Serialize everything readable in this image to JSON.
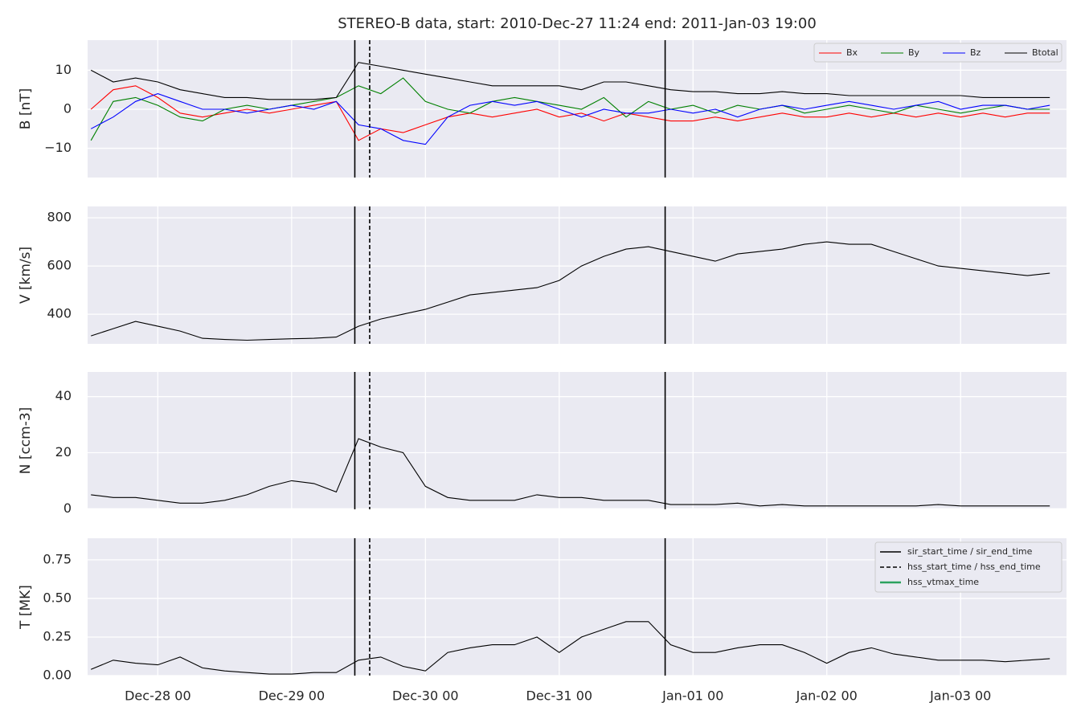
{
  "chart_data": [
    {
      "type": "line",
      "title": "STEREO-B data, start: 2010-Dec-27 11:24  end: 2011-Jan-03 19:00",
      "ylabel": "B [nT]",
      "xlim": [
        "2010-12-27 11:24",
        "2011-01-03 19:00"
      ],
      "ylim": [
        -17.5,
        17.7
      ],
      "yticks": [
        {
          "value": -10,
          "label": "−10"
        },
        0,
        10
      ],
      "grid": true,
      "legend": "upper right",
      "legend_layout": "row",
      "x": [
        "2010-12-27 12:00",
        "2010-12-27 16:00",
        "2010-12-27 20:00",
        "2010-12-28 00:00",
        "2010-12-28 04:00",
        "2010-12-28 08:00",
        "2010-12-28 12:00",
        "2010-12-28 16:00",
        "2010-12-28 20:00",
        "2010-12-29 00:00",
        "2010-12-29 04:00",
        "2010-12-29 08:00",
        "2010-12-29 12:00",
        "2010-12-29 16:00",
        "2010-12-29 20:00",
        "2010-12-30 00:00",
        "2010-12-30 04:00",
        "2010-12-30 08:00",
        "2010-12-30 12:00",
        "2010-12-30 16:00",
        "2010-12-30 20:00",
        "2010-12-31 00:00",
        "2010-12-31 04:00",
        "2010-12-31 08:00",
        "2010-12-31 12:00",
        "2010-12-31 16:00",
        "2010-12-31 20:00",
        "2011-01-01 00:00",
        "2011-01-01 04:00",
        "2011-01-01 08:00",
        "2011-01-01 12:00",
        "2011-01-01 16:00",
        "2011-01-01 20:00",
        "2011-01-02 00:00",
        "2011-01-02 04:00",
        "2011-01-02 08:00",
        "2011-01-02 12:00",
        "2011-01-02 16:00",
        "2011-01-02 20:00",
        "2011-01-03 00:00",
        "2011-01-03 04:00",
        "2011-01-03 08:00",
        "2011-01-03 12:00",
        "2011-01-03 16:00"
      ],
      "series": [
        {
          "name": "Bx",
          "color": "#ff0000",
          "values": [
            0,
            5,
            6,
            3,
            -1,
            -2,
            -1,
            0,
            -1,
            0,
            1,
            2,
            -8,
            -5,
            -6,
            -4,
            -2,
            -1,
            -2,
            -1,
            0,
            -2,
            -1,
            -3,
            -1,
            -2,
            -3,
            -3,
            -2,
            -3,
            -2,
            -1,
            -2,
            -2,
            -1,
            -2,
            -1,
            -2,
            -1,
            -2,
            -1,
            -2,
            -1,
            -1
          ]
        },
        {
          "name": "By",
          "color": "#008000",
          "values": [
            -8,
            2,
            3,
            1,
            -2,
            -3,
            0,
            1,
            0,
            1,
            2,
            3,
            6,
            4,
            8,
            2,
            0,
            -1,
            2,
            3,
            2,
            1,
            0,
            3,
            -2,
            2,
            0,
            1,
            -1,
            1,
            0,
            1,
            -1,
            0,
            1,
            0,
            -1,
            1,
            0,
            -1,
            0,
            1,
            0,
            0
          ]
        },
        {
          "name": "Bz",
          "color": "#0000ff",
          "values": [
            -5,
            -2,
            2,
            4,
            2,
            0,
            0,
            -1,
            0,
            1,
            0,
            2,
            -4,
            -5,
            -8,
            -9,
            -2,
            1,
            2,
            1,
            2,
            0,
            -2,
            0,
            -1,
            -1,
            0,
            -1,
            0,
            -2,
            0,
            1,
            0,
            1,
            2,
            1,
            0,
            1,
            2,
            0,
            1,
            1,
            0,
            1
          ]
        },
        {
          "name": "Btotal",
          "color": "#000000",
          "values": [
            10,
            7,
            8,
            7,
            5,
            4,
            3,
            3,
            2.5,
            2.5,
            2.5,
            3,
            12,
            11,
            10,
            9,
            8,
            7,
            6,
            6,
            6,
            6,
            5,
            7,
            7,
            6,
            5,
            4.5,
            4.5,
            4,
            4,
            4.5,
            4,
            4,
            3.5,
            3.5,
            3.5,
            3.5,
            3.5,
            3.5,
            3,
            3,
            3,
            3
          ]
        }
      ]
    },
    {
      "type": "line",
      "ylabel": "V [km/s]",
      "xlim": [
        "2010-12-27 11:24",
        "2011-01-03 19:00"
      ],
      "ylim": [
        277,
        847
      ],
      "yticks": [
        400,
        600,
        800
      ],
      "grid": true,
      "x": [
        "2010-12-27 12:00",
        "2010-12-27 16:00",
        "2010-12-27 20:00",
        "2010-12-28 00:00",
        "2010-12-28 04:00",
        "2010-12-28 08:00",
        "2010-12-28 12:00",
        "2010-12-28 16:00",
        "2010-12-28 20:00",
        "2010-12-29 00:00",
        "2010-12-29 04:00",
        "2010-12-29 08:00",
        "2010-12-29 12:00",
        "2010-12-29 16:00",
        "2010-12-29 20:00",
        "2010-12-30 00:00",
        "2010-12-30 04:00",
        "2010-12-30 08:00",
        "2010-12-30 12:00",
        "2010-12-30 16:00",
        "2010-12-30 20:00",
        "2010-12-31 00:00",
        "2010-12-31 04:00",
        "2010-12-31 08:00",
        "2010-12-31 12:00",
        "2010-12-31 16:00",
        "2010-12-31 20:00",
        "2011-01-01 00:00",
        "2011-01-01 04:00",
        "2011-01-01 08:00",
        "2011-01-01 12:00",
        "2011-01-01 16:00",
        "2011-01-01 20:00",
        "2011-01-02 00:00",
        "2011-01-02 04:00",
        "2011-01-02 08:00",
        "2011-01-02 12:00",
        "2011-01-02 16:00",
        "2011-01-02 20:00",
        "2011-01-03 00:00",
        "2011-01-03 04:00",
        "2011-01-03 08:00",
        "2011-01-03 12:00",
        "2011-01-03 16:00"
      ],
      "series": [
        {
          "color": "#000000",
          "values": [
            310,
            340,
            370,
            350,
            330,
            300,
            295,
            292,
            295,
            298,
            300,
            305,
            350,
            380,
            400,
            420,
            450,
            480,
            490,
            500,
            510,
            540,
            600,
            640,
            670,
            680,
            660,
            640,
            620,
            650,
            660,
            670,
            690,
            700,
            690,
            690,
            660,
            630,
            600,
            590,
            580,
            570,
            560,
            570
          ]
        }
      ]
    },
    {
      "type": "line",
      "ylabel": "N [ccm-3]",
      "xlim": [
        "2010-12-27 11:24",
        "2011-01-03 19:00"
      ],
      "ylim": [
        -0.2,
        48.8
      ],
      "yticks": [
        0,
        20,
        40
      ],
      "grid": true,
      "x": [
        "2010-12-27 12:00",
        "2010-12-27 16:00",
        "2010-12-27 20:00",
        "2010-12-28 00:00",
        "2010-12-28 04:00",
        "2010-12-28 08:00",
        "2010-12-28 12:00",
        "2010-12-28 16:00",
        "2010-12-28 20:00",
        "2010-12-29 00:00",
        "2010-12-29 04:00",
        "2010-12-29 08:00",
        "2010-12-29 12:00",
        "2010-12-29 16:00",
        "2010-12-29 20:00",
        "2010-12-30 00:00",
        "2010-12-30 04:00",
        "2010-12-30 08:00",
        "2010-12-30 12:00",
        "2010-12-30 16:00",
        "2010-12-30 20:00",
        "2010-12-31 00:00",
        "2010-12-31 04:00",
        "2010-12-31 08:00",
        "2010-12-31 12:00",
        "2010-12-31 16:00",
        "2010-12-31 20:00",
        "2011-01-01 00:00",
        "2011-01-01 04:00",
        "2011-01-01 08:00",
        "2011-01-01 12:00",
        "2011-01-01 16:00",
        "2011-01-01 20:00",
        "2011-01-02 00:00",
        "2011-01-02 04:00",
        "2011-01-02 08:00",
        "2011-01-02 12:00",
        "2011-01-02 16:00",
        "2011-01-02 20:00",
        "2011-01-03 00:00",
        "2011-01-03 04:00",
        "2011-01-03 08:00",
        "2011-01-03 12:00",
        "2011-01-03 16:00"
      ],
      "series": [
        {
          "color": "#000000",
          "values": [
            5,
            4,
            4,
            3,
            2,
            2,
            3,
            5,
            8,
            10,
            9,
            6,
            25,
            22,
            20,
            8,
            4,
            3,
            3,
            3,
            5,
            4,
            4,
            3,
            3,
            3,
            1.5,
            1.5,
            1.5,
            2,
            1,
            1.5,
            1,
            1,
            1,
            1,
            1,
            1,
            1.5,
            1,
            1,
            1,
            1,
            1
          ]
        }
      ]
    },
    {
      "type": "line",
      "ylabel": "T [MK]",
      "xlim": [
        "2010-12-27 11:24",
        "2011-01-03 19:00"
      ],
      "ylim": [
        0,
        0.89
      ],
      "yticks": [
        {
          "value": 0,
          "label": "0.00"
        },
        0.25,
        {
          "value": 0.5,
          "label": "0.50"
        },
        0.75
      ],
      "grid": true,
      "legend": "upper right",
      "legend_layout": "column",
      "xticks": [
        {
          "value": "2010-12-28 00:00",
          "label": "Dec-28 00"
        },
        {
          "value": "2010-12-29 00:00",
          "label": "Dec-29 00"
        },
        {
          "value": "2010-12-30 00:00",
          "label": "Dec-30 00"
        },
        {
          "value": "2010-12-31 00:00",
          "label": "Dec-31 00"
        },
        {
          "value": "2011-01-01 00:00",
          "label": "Jan-01 00"
        },
        {
          "value": "2011-01-02 00:00",
          "label": "Jan-02 00"
        },
        {
          "value": "2011-01-03 00:00",
          "label": "Jan-03 00"
        }
      ],
      "vlines": [
        {
          "name": "sir_start_time / sir_end_time",
          "color": "#000000",
          "style": "solid",
          "x": [
            "2010-12-29 11:20",
            "2010-12-31 19:00"
          ]
        },
        {
          "name": "hss_start_time / hss_end_time",
          "color": "#000000",
          "style": "dashed",
          "x": [
            "2010-12-29 14:00"
          ]
        },
        {
          "name": "hss_vtmax_time",
          "color": "#2ca25f",
          "style": "solid",
          "x": []
        }
      ],
      "x": [
        "2010-12-27 12:00",
        "2010-12-27 16:00",
        "2010-12-27 20:00",
        "2010-12-28 00:00",
        "2010-12-28 04:00",
        "2010-12-28 08:00",
        "2010-12-28 12:00",
        "2010-12-28 16:00",
        "2010-12-28 20:00",
        "2010-12-29 00:00",
        "2010-12-29 04:00",
        "2010-12-29 08:00",
        "2010-12-29 12:00",
        "2010-12-29 16:00",
        "2010-12-29 20:00",
        "2010-12-30 00:00",
        "2010-12-30 04:00",
        "2010-12-30 08:00",
        "2010-12-30 12:00",
        "2010-12-30 16:00",
        "2010-12-30 20:00",
        "2010-12-31 00:00",
        "2010-12-31 04:00",
        "2010-12-31 08:00",
        "2010-12-31 12:00",
        "2010-12-31 16:00",
        "2010-12-31 20:00",
        "2011-01-01 00:00",
        "2011-01-01 04:00",
        "2011-01-01 08:00",
        "2011-01-01 12:00",
        "2011-01-01 16:00",
        "2011-01-01 20:00",
        "2011-01-02 00:00",
        "2011-01-02 04:00",
        "2011-01-02 08:00",
        "2011-01-02 12:00",
        "2011-01-02 16:00",
        "2011-01-02 20:00",
        "2011-01-03 00:00",
        "2011-01-03 04:00",
        "2011-01-03 08:00",
        "2011-01-03 12:00",
        "2011-01-03 16:00"
      ],
      "series": [
        {
          "color": "#000000",
          "values": [
            0.04,
            0.1,
            0.08,
            0.07,
            0.12,
            0.05,
            0.03,
            0.02,
            0.01,
            0.01,
            0.02,
            0.02,
            0.1,
            0.12,
            0.06,
            0.03,
            0.15,
            0.18,
            0.2,
            0.2,
            0.25,
            0.15,
            0.25,
            0.3,
            0.35,
            0.35,
            0.2,
            0.15,
            0.15,
            0.18,
            0.2,
            0.2,
            0.15,
            0.08,
            0.15,
            0.18,
            0.14,
            0.12,
            0.1,
            0.1,
            0.1,
            0.09,
            0.1,
            0.11
          ]
        }
      ]
    }
  ]
}
